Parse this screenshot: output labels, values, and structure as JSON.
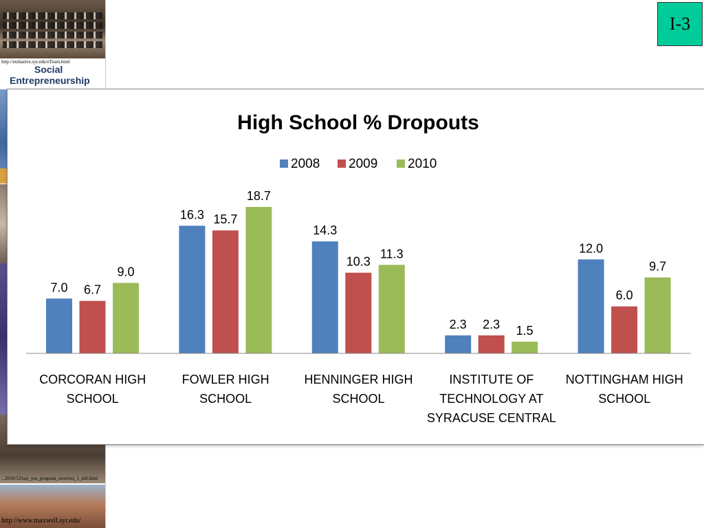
{
  "sidebar": {
    "url_top": "http://entitative.syr.edu/eTeam.html",
    "logo_line1": "Social",
    "logo_line2": "Entrepreneurship",
    "url_middle": "...2010/12/say_yes_program_receives_1_mil.html",
    "url_bottom": "http://www.maxwell.syr.edu/"
  },
  "badge": {
    "label": "I-3"
  },
  "colors": {
    "s2008": "#4f81bd",
    "s2009": "#c0504d",
    "s2010": "#9bbb59",
    "badge": "#00cc99"
  },
  "chart_data": {
    "type": "bar",
    "title": "High School % Dropouts",
    "legend_position": "top",
    "categories": [
      [
        "CORCORAN HIGH",
        "SCHOOL"
      ],
      [
        "FOWLER HIGH",
        "SCHOOL"
      ],
      [
        "HENNINGER HIGH",
        "SCHOOL"
      ],
      [
        "INSTITUTE OF",
        "TECHNOLOGY AT",
        "SYRACUSE CENTRAL"
      ],
      [
        "NOTTINGHAM HIGH",
        "SCHOOL"
      ]
    ],
    "series": [
      {
        "name": "2008",
        "values": [
          7.0,
          16.3,
          14.3,
          2.3,
          12.0
        ],
        "labels": [
          "7.0",
          "16.3",
          "14.3",
          "2.3",
          "12.0"
        ]
      },
      {
        "name": "2009",
        "values": [
          6.7,
          15.7,
          10.3,
          2.3,
          6.0
        ],
        "labels": [
          "6.7",
          "15.7",
          "10.3",
          "2.3",
          "6.0"
        ]
      },
      {
        "name": "2010",
        "values": [
          9.0,
          18.7,
          11.3,
          1.5,
          9.7
        ],
        "labels": [
          "9.0",
          "18.7",
          "11.3",
          "1.5",
          "9.7"
        ]
      }
    ],
    "ylim": [
      0,
      18.7
    ],
    "grid": false
  }
}
